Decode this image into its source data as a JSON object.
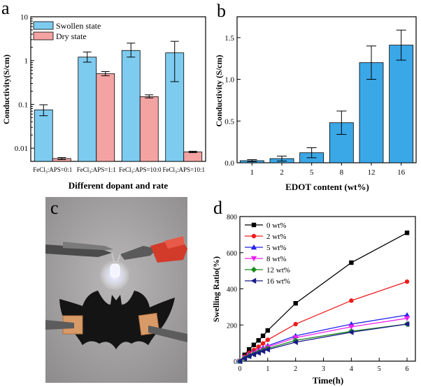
{
  "chart_data": [
    {
      "panel": "a",
      "type": "bar",
      "xlabel": "Different dopant and rate",
      "ylabel": "Conductivity(S/cm)",
      "yscale": "log",
      "ylim": [
        0.005,
        10
      ],
      "yticks": [
        "0.01",
        "0.1",
        "1",
        "10"
      ],
      "categories": [
        {
          "base": "FeCl",
          "sub": "3",
          "rest": ":APS=0:1"
        },
        {
          "base": "FeCl",
          "sub": "3",
          "rest": ":APS=1:1"
        },
        {
          "base": "FeCl",
          "sub": "3",
          "rest": ":APS=10:0"
        },
        {
          "base": "FeCl",
          "sub": "3",
          "rest": ":APS=10:1"
        }
      ],
      "legend_position": "top-left",
      "series": [
        {
          "name": "Swollen state",
          "color": "#7ecbf0",
          "values": [
            0.075,
            1.2,
            1.7,
            1.5
          ],
          "errors": [
            [
              0.055,
              0.098
            ],
            [
              0.92,
              1.57
            ],
            [
              1.2,
              2.5
            ],
            [
              0.33,
              2.75
            ]
          ]
        },
        {
          "name": "Dry state",
          "color": "#f4a3a3",
          "values": [
            0.0058,
            0.5,
            0.15,
            0.0082
          ],
          "errors": [
            [
              0.0055,
              0.0061
            ],
            [
              0.45,
              0.56
            ],
            [
              0.14,
              0.165
            ],
            [
              0.0079,
              0.0085
            ]
          ]
        }
      ]
    },
    {
      "panel": "b",
      "type": "bar",
      "xlabel": "EDOT content (wt%)",
      "ylabel": "Conductivity (S/cm)",
      "ylim": [
        0,
        1.75
      ],
      "yticks": [
        "0.0",
        "0.5",
        "1.0",
        "1.5"
      ],
      "color": "#3aa7e6",
      "categories": [
        "1",
        "2",
        "5",
        "8",
        "12",
        "16"
      ],
      "values": [
        0.025,
        0.05,
        0.12,
        0.48,
        1.2,
        1.41
      ],
      "errors": [
        0.012,
        0.03,
        0.06,
        0.14,
        0.2,
        0.18
      ]
    },
    {
      "panel": "d",
      "type": "line",
      "xlabel": "Time(h)",
      "ylabel": "Swelling Ratio(%)",
      "xlim": [
        0,
        6.3
      ],
      "ylim": [
        0,
        800
      ],
      "xticks": [
        "0",
        "1",
        "2",
        "3",
        "4",
        "5",
        "6"
      ],
      "yticks": [
        "0",
        "200",
        "400",
        "600",
        "800"
      ],
      "legend_position": "top-left",
      "x": [
        0,
        0.17,
        0.33,
        0.5,
        0.67,
        0.83,
        1,
        2,
        4,
        6
      ],
      "series": [
        {
          "name": "0 wt%",
          "color": "#000000",
          "marker": "square",
          "values": [
            0,
            35,
            65,
            90,
            115,
            140,
            170,
            320,
            545,
            710
          ]
        },
        {
          "name": "2 wt%",
          "color": "#ee1c1c",
          "marker": "circle",
          "values": [
            0,
            25,
            45,
            62,
            80,
            98,
            118,
            205,
            335,
            440
          ]
        },
        {
          "name": "5 wt%",
          "color": "#2222ee",
          "marker": "triangle-up",
          "values": [
            0,
            20,
            35,
            48,
            60,
            72,
            85,
            140,
            205,
            255
          ]
        },
        {
          "name": "8 wt%",
          "color": "#ee22ee",
          "marker": "triangle-down",
          "values": [
            0,
            18,
            32,
            44,
            55,
            66,
            78,
            130,
            190,
            237
          ]
        },
        {
          "name": "12 wt%",
          "color": "#1a8a1a",
          "marker": "diamond",
          "values": [
            0,
            16,
            29,
            40,
            50,
            60,
            70,
            115,
            165,
            205
          ]
        },
        {
          "name": "16 wt%",
          "color": "#1a1a8a",
          "marker": "triangle-left",
          "values": [
            0,
            15,
            27,
            37,
            46,
            55,
            64,
            105,
            160,
            205
          ]
        }
      ]
    }
  ],
  "panel_labels": {
    "a": "a",
    "b": "b",
    "c": "c",
    "d": "d"
  }
}
